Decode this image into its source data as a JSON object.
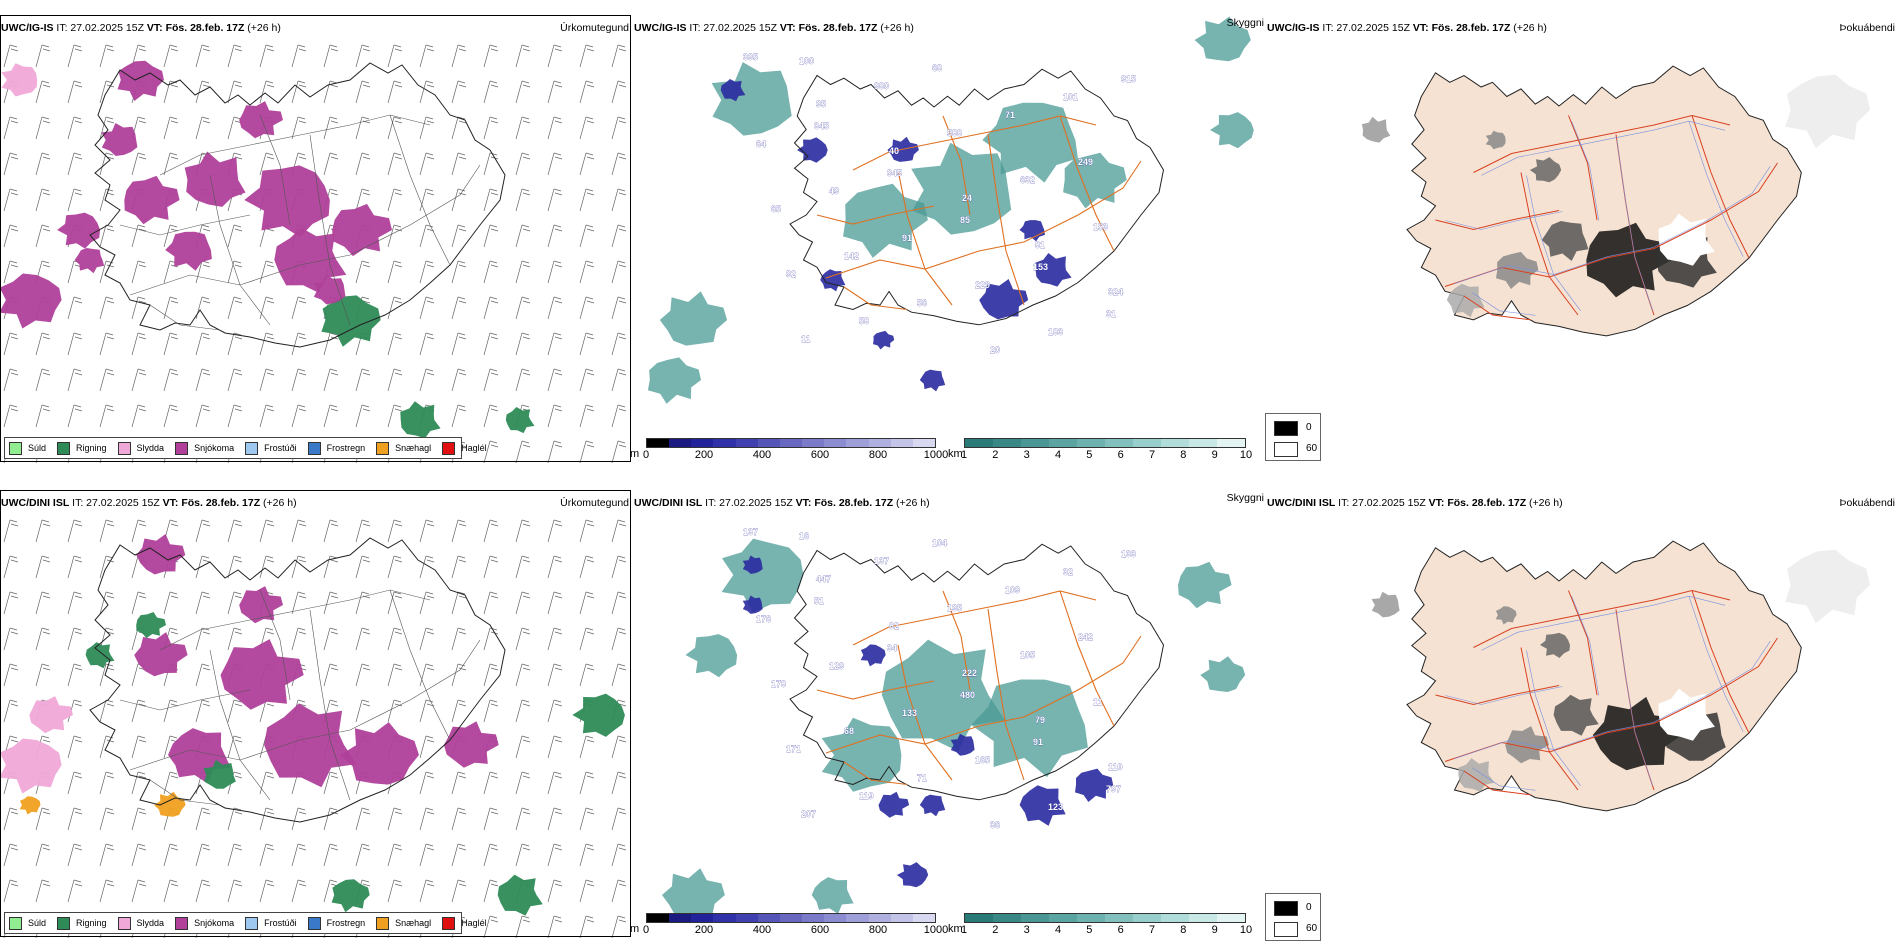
{
  "panels": [
    {
      "model": "UWC/IG-IS",
      "init": "IT: 27.02.2025 15Z",
      "valid_label": "VT:",
      "valid": "Fös. 28.feb. 17Z",
      "lead": "(+26 h)",
      "name": "Úrkomutegund"
    },
    {
      "model": "UWC/IG-IS",
      "init": "IT: 27.02.2025 15Z",
      "valid_label": "VT:",
      "valid": "Fös. 28.feb. 17Z",
      "lead": "(+26 h)",
      "name": "Skyggni"
    },
    {
      "model": "UWC/IG-IS",
      "init": "IT: 27.02.2025 15Z",
      "valid_label": "VT:",
      "valid": "Fös. 28.feb. 17Z",
      "lead": "(+26 h)",
      "name": "Þokuábendi"
    },
    {
      "model": "UWC/DINI ISL",
      "init": "IT: 27.02.2025 15Z",
      "valid_label": "VT:",
      "valid": "Fös. 28.feb. 17Z",
      "lead": "(+26 h)",
      "name": "Úrkomutegund"
    },
    {
      "model": "UWC/DINI ISL",
      "init": "IT: 27.02.2025 15Z",
      "valid_label": "VT:",
      "valid": "Fös. 28.feb. 17Z",
      "lead": "(+26 h)",
      "name": "Skyggni"
    },
    {
      "model": "UWC/DINI ISL",
      "init": "IT: 27.02.2025 15Z",
      "valid_label": "VT:",
      "valid": "Fös. 28.feb. 17Z",
      "lead": "(+26 h)",
      "name": "Þokuábendi"
    }
  ],
  "precip_legend": [
    {
      "label": "Súld",
      "color": "#90ee90"
    },
    {
      "label": "Rigning",
      "color": "#2e8b57"
    },
    {
      "label": "Slydda",
      "color": "#f0a8d8"
    },
    {
      "label": "Snjókoma",
      "color": "#b0409a"
    },
    {
      "label": "Frostúði",
      "color": "#9ec8f0"
    },
    {
      "label": "Frostregn",
      "color": "#3a78c8"
    },
    {
      "label": "Snæhagl",
      "color": "#f0a020"
    },
    {
      "label": "Haglél",
      "color": "#e01010"
    }
  ],
  "ceiling_bar": {
    "unit": "m",
    "ticks": [
      "0",
      "200",
      "400",
      "600",
      "800",
      "1000"
    ],
    "colors": [
      "#000000",
      "#1a1a80",
      "#22229a",
      "#3030a8",
      "#4040b0",
      "#5555b8",
      "#6868c0",
      "#7a7ac8",
      "#8c8cd0",
      "#9e9ed8",
      "#b0b0e0",
      "#c4c4e8",
      "#d8d8f0"
    ]
  },
  "vis_bar": {
    "unit": "km",
    "ticks": [
      "1",
      "2",
      "3",
      "4",
      "5",
      "6",
      "7",
      "8",
      "9",
      "10"
    ],
    "colors": [
      "#2a7a78",
      "#3a8886",
      "#4a9694",
      "#5aa4a2",
      "#6eb2b0",
      "#82c0be",
      "#98cecc",
      "#b0dcda",
      "#c8e8e6",
      "#e4f4f2"
    ]
  },
  "fog_legend": [
    {
      "label": "0",
      "color": "#000000"
    },
    {
      "label": "60",
      "color": "#ffffff"
    }
  ],
  "ceiling_labels_top": [
    "395",
    "95",
    "40",
    "24",
    "81",
    "324",
    "11",
    "980",
    "588",
    "632",
    "153",
    "92",
    "58",
    "68",
    "71",
    "249",
    "65",
    "142",
    "56",
    "20",
    "101",
    "64",
    "49",
    "91",
    "229",
    "183",
    "915",
    "345",
    "945",
    "85",
    "153",
    "31",
    "100"
  ],
  "ceiling_labels_bottom": [
    "137",
    "447",
    "82",
    "222",
    "79",
    "110",
    "207",
    "137",
    "195",
    "105",
    "11",
    "171",
    "119",
    "104",
    "109",
    "242",
    "178",
    "68",
    "71",
    "36",
    "32",
    "176",
    "129",
    "133",
    "165",
    "123",
    "133",
    "51",
    "34",
    "480",
    "91",
    "797",
    "16"
  ],
  "colors": {
    "land_fill": "#f5e2d2",
    "roads_orange": "#e07020",
    "roads_red": "#d84020",
    "rivers_blue": "#7890e0",
    "coast": "#222222",
    "snow": "#b0409a",
    "rain": "#2e8b57",
    "cloud_teal": "#4a9a94",
    "ceiling_blue": "#2a2aa0"
  }
}
